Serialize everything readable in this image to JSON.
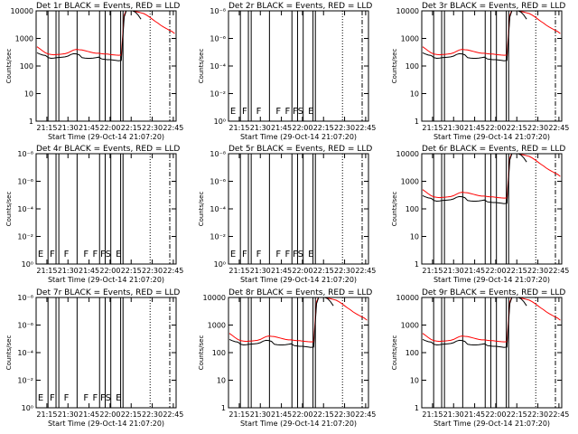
{
  "figure": {
    "panels": [
      {
        "title": "Det 1r BLACK = Events, RED = LLD",
        "ytype": "log",
        "yticks": [
          "1",
          "10",
          "100",
          "1000",
          "10000"
        ],
        "ylabel": "Counts/sec",
        "xlabel": "Start Time (29-Oct-14 21:07:20)",
        "has_data": true,
        "flags": []
      },
      {
        "title": "Det 2r BLACK = Events, RED = LLD",
        "ytype": "exp",
        "yticks": [
          "10⁰",
          "10⁻²",
          "10⁻⁴",
          "10⁻⁶",
          "10⁻⁸"
        ],
        "ylabel": "Counts/sec",
        "xlabel": "Start Time (29-Oct-14 21:07:20)",
        "has_data": false,
        "flags": [
          "E",
          "F",
          "F",
          "F",
          "F",
          "FS",
          "E"
        ]
      },
      {
        "title": "Det 3r BLACK = Events, RED = LLD",
        "ytype": "log",
        "yticks": [
          "1",
          "10",
          "100",
          "1000",
          "10000"
        ],
        "ylabel": "Counts/sec",
        "xlabel": "Start Time (29-Oct-14 21:07:20)",
        "has_data": true,
        "flags": []
      },
      {
        "title": "Det 4r BLACK = Events, RED = LLD",
        "ytype": "exp",
        "yticks": [
          "10⁰",
          "10⁻²",
          "10⁻⁴",
          "10⁻⁶",
          "10⁻⁸"
        ],
        "ylabel": "Counts/sec",
        "xlabel": "Start Time (29-Oct-14 21:07:20)",
        "has_data": false,
        "flags": [
          "E",
          "F",
          "F",
          "F",
          "F",
          "FS",
          "E"
        ]
      },
      {
        "title": "Det 5r BLACK = Events, RED = LLD",
        "ytype": "exp",
        "yticks": [
          "10⁰",
          "10⁻²",
          "10⁻⁴",
          "10⁻⁶",
          "10⁻⁸"
        ],
        "ylabel": "Counts/sec",
        "xlabel": "Start Time (29-Oct-14 21:07:20)",
        "has_data": false,
        "flags": [
          "E",
          "F",
          "F",
          "F",
          "F",
          "FS",
          "E"
        ]
      },
      {
        "title": "Det 6r BLACK = Events, RED = LLD",
        "ytype": "log",
        "yticks": [
          "1",
          "10",
          "100",
          "1000",
          "10000"
        ],
        "ylabel": "Counts/sec",
        "xlabel": "Start Time (29-Oct-14 21:07:20)",
        "has_data": true,
        "flags": []
      },
      {
        "title": "Det 7r BLACK = Events, RED = LLD",
        "ytype": "exp",
        "yticks": [
          "10⁰",
          "10⁻²",
          "10⁻⁴",
          "10⁻⁶",
          "10⁻⁸"
        ],
        "ylabel": "Counts/sec",
        "xlabel": "Start Time (29-Oct-14 21:07:20)",
        "has_data": false,
        "flags": [
          "E",
          "F",
          "F",
          "F",
          "F",
          "FS",
          "E"
        ]
      },
      {
        "title": "Det 8r BLACK = Events, RED = LLD",
        "ytype": "log",
        "yticks": [
          "1",
          "10",
          "100",
          "1000",
          "10000"
        ],
        "ylabel": "Counts/sec",
        "xlabel": "Start Time (29-Oct-14 21:07:20)",
        "has_data": true,
        "flags": []
      },
      {
        "title": "Det 9r BLACK = Events, RED = LLD",
        "ytype": "log",
        "yticks": [
          "1",
          "10",
          "100",
          "1000",
          "10000"
        ],
        "ylabel": "Counts/sec",
        "xlabel": "Start Time (29-Oct-14 21:07:20)",
        "has_data": true,
        "flags": []
      }
    ]
  },
  "chart_data": {
    "type": "line",
    "x_ticks": [
      "21:15",
      "21:30",
      "21:45",
      "22:00",
      "22:15",
      "22:30",
      "22:45"
    ],
    "x_tick_minutes": [
      15,
      30,
      45,
      60,
      75,
      90,
      105
    ],
    "xlim_minutes": [
      7.33,
      107
    ],
    "ylim_log": [
      1,
      10000
    ],
    "solid_markers_minutes": [
      15.8,
      21.5,
      23.5,
      36.5,
      52.5,
      56.5,
      60.5,
      67.5,
      69.2
    ],
    "dotted_markers_minutes": [
      88.5
    ],
    "dashdot_markers_minutes": [
      102.5
    ],
    "series": [
      {
        "name": "Events",
        "color": "#000000",
        "x": [
          8,
          10,
          12,
          14,
          16,
          18,
          20,
          22,
          24,
          26,
          28,
          30,
          32,
          34,
          36,
          38,
          40,
          42,
          44,
          46,
          48,
          50,
          52,
          54,
          56,
          58,
          60,
          62,
          64,
          66,
          68,
          70,
          72,
          74,
          76,
          78,
          80,
          82
        ],
        "y": [
          300,
          270,
          250,
          240,
          200,
          190,
          195,
          200,
          205,
          210,
          215,
          230,
          260,
          280,
          275,
          255,
          200,
          195,
          190,
          190,
          195,
          200,
          210,
          180,
          175,
          170,
          170,
          165,
          160,
          155,
          160,
          6000,
          12000,
          11000,
          10000,
          9000,
          7000,
          5000
        ]
      },
      {
        "name": "LLD",
        "color": "#ff0000",
        "x": [
          8,
          10,
          12,
          14,
          16,
          18,
          20,
          22,
          24,
          26,
          28,
          30,
          32,
          34,
          36,
          38,
          40,
          42,
          44,
          46,
          48,
          50,
          52,
          54,
          56,
          58,
          60,
          62,
          64,
          66,
          68,
          70,
          72,
          74,
          76,
          78,
          80,
          82,
          84,
          86,
          88,
          90,
          92,
          94,
          96,
          98,
          100,
          102,
          104,
          106
        ],
        "y": [
          500,
          420,
          350,
          300,
          270,
          260,
          255,
          260,
          265,
          270,
          280,
          300,
          340,
          380,
          400,
          390,
          380,
          360,
          340,
          320,
          300,
          290,
          290,
          280,
          270,
          270,
          260,
          255,
          250,
          245,
          250,
          7000,
          12000,
          11000,
          10000,
          9500,
          9000,
          8500,
          8000,
          7000,
          6000,
          5000,
          4200,
          3600,
          3000,
          2600,
          2300,
          2000,
          1800,
          1500
        ]
      }
    ]
  }
}
